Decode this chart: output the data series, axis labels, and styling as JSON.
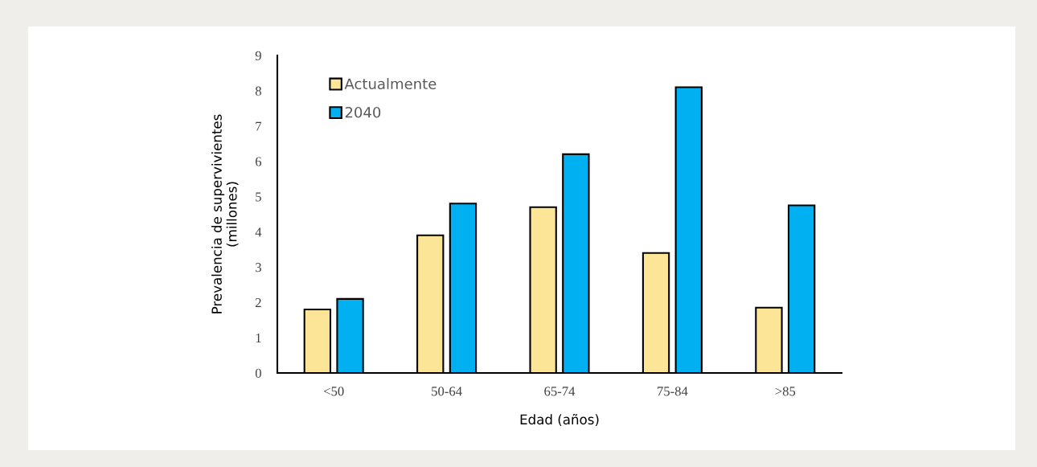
{
  "chart_data": {
    "type": "bar",
    "xlabel": "Edad (años)",
    "ylabel": "Prevalencia de supervivientes\n(millones)",
    "categories": [
      "<50",
      "50-64",
      "65-74",
      "75-84",
      ">85"
    ],
    "series": [
      {
        "name": "Actualmente",
        "color": "#fde598",
        "values": [
          1.8,
          3.9,
          4.7,
          3.4,
          1.85
        ]
      },
      {
        "name": "2040",
        "color": "#00b0f0",
        "values": [
          2.1,
          4.8,
          6.2,
          8.1,
          4.75
        ]
      }
    ],
    "ylim": [
      0,
      9
    ],
    "yticks": [
      0,
      1,
      2,
      3,
      4,
      5,
      6,
      7,
      8,
      9
    ],
    "grid": false,
    "legend": "top left"
  }
}
